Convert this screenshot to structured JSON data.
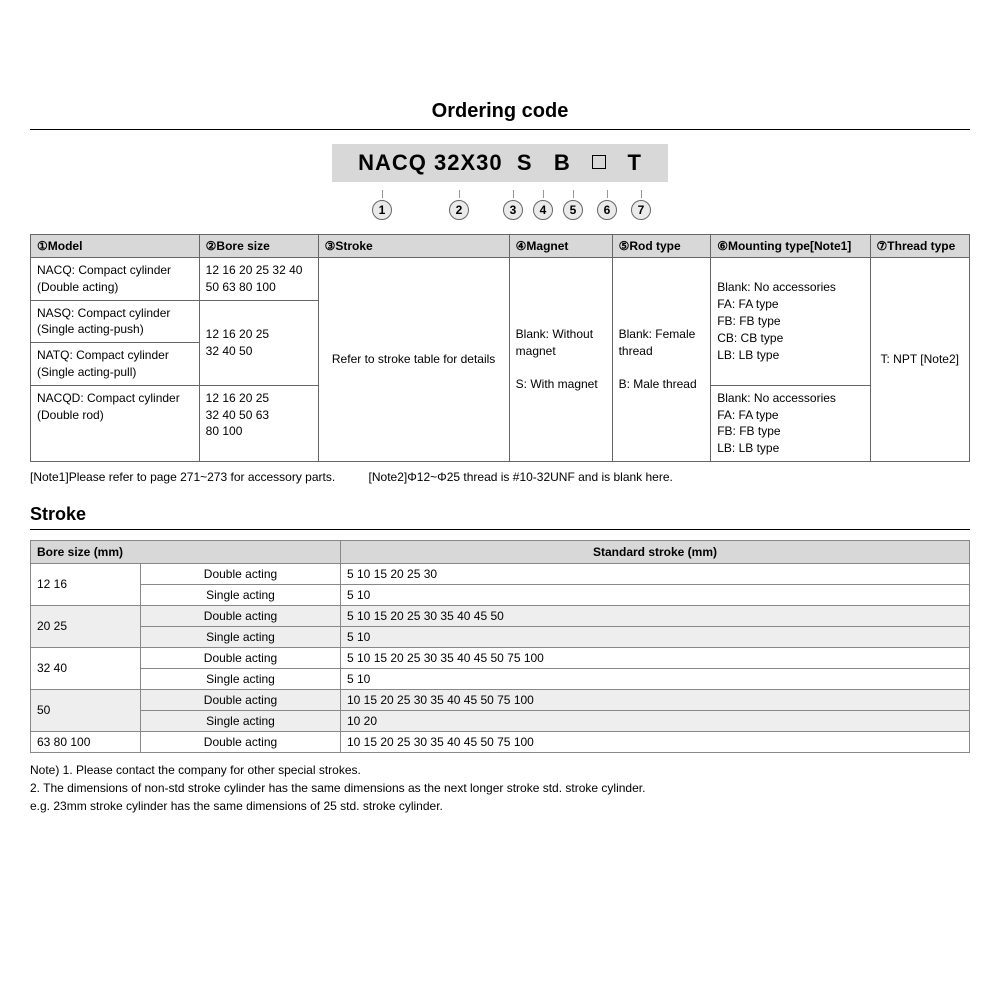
{
  "ordering_title": "Ordering code",
  "code_parts": [
    "NACQ",
    "32X30",
    "S",
    "B",
    "□",
    "T"
  ],
  "markers": [
    "1",
    "2",
    "3",
    "4",
    "5",
    "6",
    "7"
  ],
  "marker_widths": [
    76,
    78,
    30,
    30,
    30,
    38,
    30
  ],
  "spec_table": {
    "headers": [
      "①Model",
      "②Bore size",
      "③Stroke",
      "④Magnet",
      "⑤Rod type",
      "⑥Mounting type[Note1]",
      "⑦Thread type"
    ],
    "model_rows": [
      {
        "name": "NACQ: Compact cylinder\n            (Double acting)",
        "bore": "12 16 20 25 32 40\n50 63 80 100"
      },
      {
        "name": "NASQ: Compact cylinder\n            (Single acting-push)",
        "bore": "12 16 20 25\n32 40 50",
        "bore_rowspan": 2
      },
      {
        "name": "NATQ: Compact cylinder\n            (Single acting-pull)"
      },
      {
        "name": "NACQD: Compact cylinder\n               (Double rod)",
        "bore": "12 16 20 25\n32 40 50 63\n80 100"
      }
    ],
    "stroke_cell": "Refer to stroke table for details",
    "magnet_cell": "Blank: Without\n            magnet\n\nS: With magnet",
    "rod_cell": "Blank: Female\n            thread\n\nB: Male thread",
    "mounting_top": "Blank: No accessories\nFA: FA type\nFB: FB type\nCB: CB type\nLB: LB type",
    "mounting_bot": "Blank: No accessories\nFA: FA type\nFB: FB type\nLB: LB type",
    "thread_cell": "T: NPT [Note2]"
  },
  "notes_line": {
    "n1": "[Note1]Please refer to page 271~273 for accessory parts.",
    "n2": "[Note2]Φ12~Φ25 thread is  #10-32UNF and is blank here."
  },
  "stroke_title": "Stroke",
  "stroke_table": {
    "head_bore": "Bore size (mm)",
    "head_std": "Standard stroke (mm)",
    "rows": [
      {
        "bore": "12  16",
        "bore_rowspan": 2,
        "type": "Double acting",
        "vals": "5  10  15  20  25  30",
        "shade": false
      },
      {
        "type": "Single acting",
        "vals": "5  10",
        "shade": false
      },
      {
        "bore": "20  25",
        "bore_rowspan": 2,
        "type": "Double acting",
        "vals": "5  10  15  20  25  30  35  40  45  50",
        "shade": true
      },
      {
        "type": "Single acting",
        "vals": "5  10",
        "shade": true
      },
      {
        "bore": "32  40",
        "bore_rowspan": 2,
        "type": "Double acting",
        "vals": "5  10  15  20  25  30  35  40  45  50  75  100",
        "shade": false
      },
      {
        "type": "Single acting",
        "vals": "5  10",
        "shade": false
      },
      {
        "bore": "50",
        "bore_rowspan": 2,
        "type": "Double acting",
        "vals": "10  15  20  25  30  35  40  45  50  75  100",
        "shade": true
      },
      {
        "type": "Single acting",
        "vals": "10  20",
        "shade": true
      },
      {
        "bore": "63  80  100",
        "bore_rowspan": 1,
        "type": "Double acting",
        "vals": "10  15  20  25  30  35  40  45  50  75  100",
        "shade": false
      }
    ]
  },
  "stroke_notes": "Note) 1. Please contact the company for other special strokes.\n          2. The dimensions of non-std stroke cylinder has the same dimensions as the next longer stroke std. stroke cylinder.\n              e.g. 23mm stroke cylinder has the same dimensions of 25 std. stroke cylinder."
}
